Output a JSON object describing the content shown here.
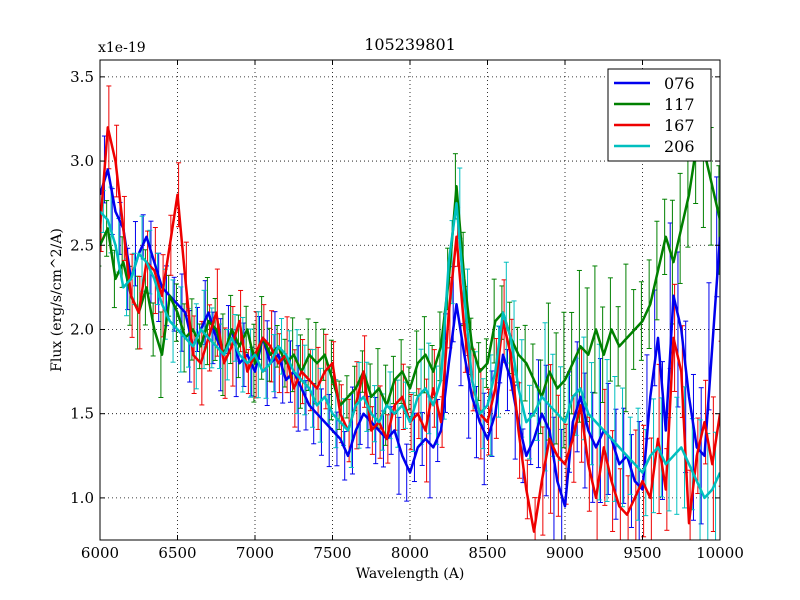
{
  "chart_data": {
    "type": "line",
    "title": "105239801",
    "xlabel": "Wavelength (A)",
    "ylabel": "Flux (erg/s/cm^2/A)",
    "y_scale_label": "x1e-19",
    "y_scale": 1e-19,
    "xlim": [
      6000,
      10000
    ],
    "ylim": [
      0.75,
      3.6
    ],
    "grid": true,
    "legend_position": "top-right",
    "x_ticks": [
      6000,
      6500,
      7000,
      7500,
      8000,
      8500,
      9000,
      9500,
      10000
    ],
    "x_tick_labels": [
      "6000",
      "6500",
      "7000",
      "7500",
      "8000",
      "8500",
      "9000",
      "9500",
      "10000"
    ],
    "y_ticks": [
      1.0,
      1.5,
      2.0,
      2.5,
      3.0,
      3.5
    ],
    "y_tick_labels": [
      "1.0",
      "1.5",
      "2.0",
      "2.5",
      "3.0",
      "3.5"
    ],
    "x": [
      6000,
      6050,
      6100,
      6150,
      6200,
      6250,
      6300,
      6350,
      6400,
      6450,
      6500,
      6550,
      6600,
      6650,
      6700,
      6750,
      6800,
      6850,
      6900,
      6950,
      7000,
      7050,
      7100,
      7150,
      7200,
      7250,
      7300,
      7350,
      7400,
      7450,
      7500,
      7550,
      7600,
      7650,
      7700,
      7750,
      7800,
      7850,
      7900,
      7950,
      8000,
      8050,
      8100,
      8150,
      8200,
      8250,
      8300,
      8350,
      8400,
      8450,
      8500,
      8550,
      8600,
      8650,
      8700,
      8750,
      8800,
      8850,
      8900,
      8950,
      9000,
      9050,
      9100,
      9150,
      9200,
      9250,
      9300,
      9350,
      9400,
      9450,
      9500,
      9550,
      9600,
      9650,
      9700,
      9750,
      9800,
      9850,
      9900,
      9950,
      10000
    ],
    "series": [
      {
        "name": "076",
        "color": "#0000ee",
        "values": [
          2.8,
          2.95,
          2.7,
          2.6,
          2.3,
          2.45,
          2.55,
          2.4,
          2.25,
          2.2,
          2.15,
          2.1,
          1.9,
          2.0,
          2.1,
          1.95,
          1.85,
          2.0,
          1.8,
          1.85,
          1.75,
          1.95,
          1.8,
          1.85,
          1.7,
          1.75,
          1.65,
          1.55,
          1.5,
          1.45,
          1.4,
          1.35,
          1.25,
          1.4,
          1.5,
          1.45,
          1.4,
          1.35,
          1.4,
          1.25,
          1.15,
          1.3,
          1.35,
          1.3,
          1.4,
          1.8,
          2.15,
          1.85,
          1.6,
          1.45,
          1.35,
          1.5,
          1.85,
          1.7,
          1.45,
          1.25,
          1.35,
          1.5,
          1.4,
          1.1,
          0.95,
          1.45,
          1.6,
          1.4,
          1.3,
          1.4,
          1.35,
          1.2,
          1.25,
          1.1,
          1.05,
          1.6,
          1.95,
          1.4,
          2.2,
          2.0,
          1.6,
          1.3,
          1.25,
          1.9,
          2.55
        ]
      },
      {
        "name": "117",
        "color": "#008000",
        "values": [
          2.5,
          2.6,
          2.3,
          2.4,
          2.2,
          2.1,
          2.25,
          2.0,
          1.85,
          2.2,
          2.1,
          1.95,
          2.0,
          1.9,
          2.05,
          2.0,
          1.85,
          2.0,
          1.9,
          2.0,
          1.8,
          1.95,
          1.85,
          1.9,
          1.8,
          1.85,
          1.75,
          1.85,
          1.8,
          1.85,
          1.7,
          1.55,
          1.6,
          1.65,
          1.75,
          1.6,
          1.65,
          1.55,
          1.7,
          1.75,
          1.65,
          1.8,
          1.85,
          1.75,
          1.9,
          2.3,
          2.85,
          2.3,
          1.9,
          1.75,
          1.8,
          2.05,
          2.1,
          1.95,
          1.85,
          1.8,
          1.7,
          1.6,
          1.75,
          1.65,
          1.7,
          1.8,
          1.9,
          1.85,
          2.0,
          1.85,
          2.0,
          1.9,
          1.95,
          2.0,
          2.05,
          2.15,
          2.35,
          2.55,
          2.4,
          2.6,
          2.8,
          3.1,
          3.05,
          2.85,
          2.65
        ]
      },
      {
        "name": "167",
        "color": "#ee0000",
        "values": [
          2.6,
          3.2,
          3.0,
          2.6,
          2.2,
          2.1,
          2.4,
          2.35,
          2.2,
          2.5,
          2.8,
          2.3,
          1.85,
          1.8,
          1.95,
          2.1,
          1.8,
          1.9,
          2.05,
          1.75,
          1.85,
          1.95,
          1.9,
          1.8,
          1.85,
          1.65,
          1.75,
          1.7,
          1.65,
          1.75,
          1.8,
          1.5,
          1.4,
          1.55,
          1.75,
          1.4,
          1.45,
          1.35,
          1.55,
          1.6,
          1.45,
          1.5,
          1.4,
          1.65,
          1.45,
          2.1,
          2.55,
          2.0,
          1.7,
          1.5,
          1.45,
          1.65,
          2.05,
          1.85,
          1.4,
          1.05,
          0.8,
          1.1,
          1.35,
          1.25,
          1.2,
          1.35,
          1.55,
          1.2,
          1.0,
          1.3,
          1.1,
          0.95,
          0.9,
          1.0,
          1.1,
          1.0,
          1.35,
          1.05,
          1.95,
          1.75,
          0.85,
          1.25,
          1.45,
          1.2,
          1.5
        ]
      },
      {
        "name": "206",
        "color": "#00bfbf",
        "values": [
          2.7,
          2.65,
          2.5,
          2.25,
          2.3,
          2.45,
          2.4,
          2.3,
          2.15,
          2.05,
          2.0,
          1.95,
          1.9,
          2.0,
          1.95,
          1.9,
          1.85,
          1.95,
          1.85,
          1.8,
          1.85,
          1.75,
          1.8,
          1.9,
          1.85,
          1.75,
          1.7,
          1.65,
          1.55,
          1.6,
          1.5,
          1.45,
          1.4,
          1.55,
          1.6,
          1.5,
          1.45,
          1.55,
          1.5,
          1.55,
          1.45,
          1.6,
          1.65,
          1.55,
          1.7,
          2.4,
          2.75,
          2.2,
          1.7,
          1.5,
          1.55,
          1.75,
          2.1,
          1.95,
          1.65,
          1.45,
          1.5,
          1.6,
          1.55,
          1.5,
          1.45,
          1.6,
          1.65,
          1.5,
          1.45,
          1.4,
          1.35,
          1.3,
          1.25,
          1.2,
          1.15,
          1.25,
          1.3,
          1.2,
          1.25,
          1.3,
          1.2,
          1.1,
          1.0,
          1.05,
          1.15
        ]
      }
    ]
  }
}
